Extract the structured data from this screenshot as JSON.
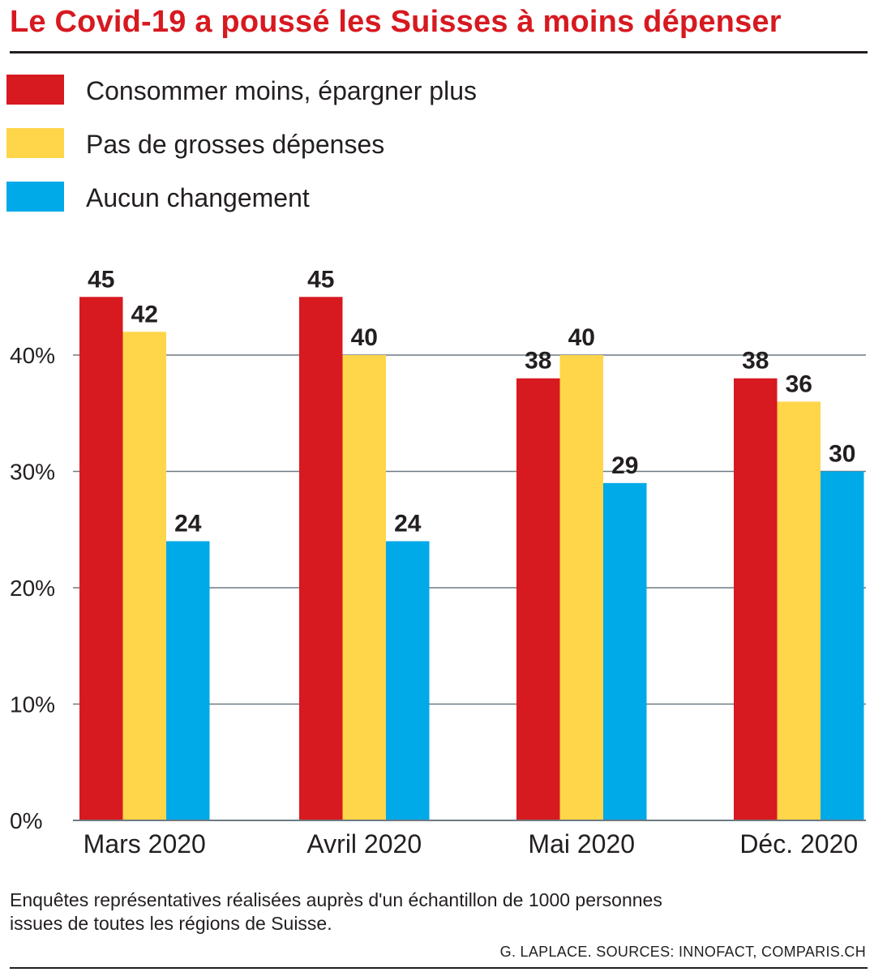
{
  "title": "Le Covid-19 a poussé les Suisses à moins dépenser",
  "legend": [
    {
      "label": "Consommer moins, épargner plus",
      "color": "#d71920"
    },
    {
      "label": "Pas de grosses dépenses",
      "color": "#ffd54a"
    },
    {
      "label": "Aucun changement",
      "color": "#00a9e8"
    }
  ],
  "note_line1": "Enquêtes représentatives réalisées auprès d'un échantillon de 1000 personnes",
  "note_line2": "issues de toutes les régions de Suisse.",
  "credit": "G. LAPLACE. SOURCES: INNOFACT, COMPARIS.CH",
  "chart_data": {
    "type": "bar",
    "title": "Le Covid-19 a poussé les Suisses à moins dépenser",
    "categories": [
      "Mars 2020",
      "Avril 2020",
      "Mai 2020",
      "Déc. 2020"
    ],
    "series": [
      {
        "name": "Consommer moins, épargner plus",
        "color": "#d71920",
        "values": [
          45,
          45,
          38,
          38
        ]
      },
      {
        "name": "Pas de grosses dépenses",
        "color": "#ffd54a",
        "values": [
          42,
          40,
          40,
          36
        ]
      },
      {
        "name": "Aucun changement",
        "color": "#00a9e8",
        "values": [
          24,
          24,
          29,
          30
        ]
      }
    ],
    "yticks": [
      0,
      10,
      20,
      30,
      40
    ],
    "ytick_labels": [
      "0%",
      "10%",
      "20%",
      "30%",
      "40%"
    ],
    "ylim": [
      0,
      50
    ],
    "xlabel": "",
    "ylabel": "",
    "grid": true,
    "legend_position": "top-left"
  }
}
